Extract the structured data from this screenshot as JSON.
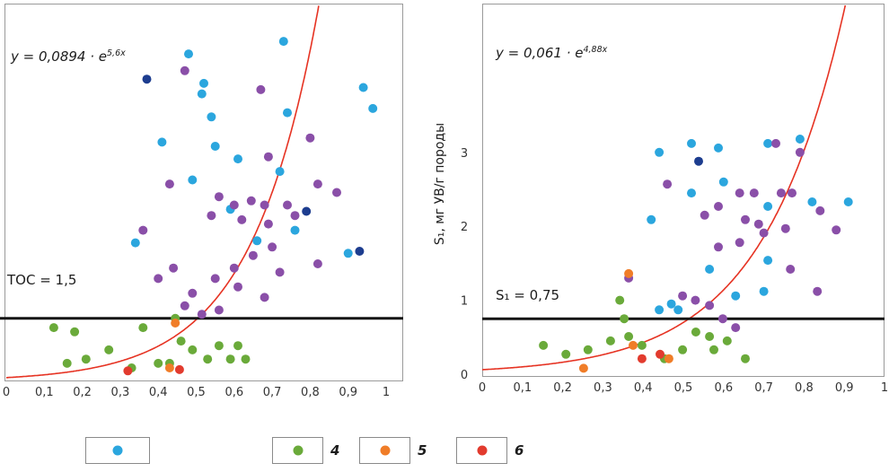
{
  "colors": {
    "curve": "#e63323",
    "threshold_line": "#141414",
    "plot_border": "#9a9a9a"
  },
  "legend": {
    "items": [
      {
        "name": "group-1",
        "label": "",
        "color": "#2ba6de"
      },
      {
        "name": "group-4",
        "label": "4",
        "color": "#6aaa3a"
      },
      {
        "name": "group-5",
        "label": "5",
        "color": "#f07d28"
      },
      {
        "name": "group-6",
        "label": "6",
        "color": "#e23b2e"
      }
    ]
  },
  "chart_data": [
    {
      "type": "scatter",
      "equation": {
        "base": "y = 0,0894 · e",
        "exponent": "5,6x"
      },
      "threshold": {
        "label": "TOC = 1,5",
        "value": 1.5
      },
      "fit_curve": {
        "type": "exponential",
        "a": 0.0894,
        "b": 5.6
      },
      "xlim": [
        0,
        1
      ],
      "ylim": [
        0,
        9
      ],
      "xlabel": "",
      "ylabel": "",
      "x_ticks": {
        "values": [
          0,
          0.1,
          0.2,
          0.3,
          0.4,
          0.5,
          0.6,
          0.7,
          0.8,
          0.9,
          1
        ],
        "labels": [
          "0",
          "0,1",
          "0,2",
          "0,3",
          "0,4",
          "0,5",
          "0,6",
          "0,7",
          "0,8",
          "0,9",
          "1"
        ]
      },
      "y_ticks": {
        "values": [],
        "labels": []
      },
      "series": [
        {
          "name": "group-1",
          "color": "#2ba6de",
          "points": [
            [
              0.48,
              7.8
            ],
            [
              0.73,
              8.1
            ],
            [
              0.515,
              6.85
            ],
            [
              0.54,
              6.3
            ],
            [
              0.74,
              6.4
            ],
            [
              0.94,
              7.0
            ],
            [
              0.965,
              6.5
            ],
            [
              0.41,
              5.7
            ],
            [
              0.55,
              5.6
            ],
            [
              0.61,
              5.3
            ],
            [
              0.49,
              4.8
            ],
            [
              0.34,
              3.3
            ],
            [
              0.66,
              3.35
            ],
            [
              0.76,
              3.6
            ],
            [
              0.9,
              3.05
            ],
            [
              0.59,
              4.1
            ],
            [
              0.72,
              5.0
            ],
            [
              0.52,
              7.1
            ]
          ]
        },
        {
          "name": "group-2",
          "color": "#1d3d8f",
          "points": [
            [
              0.37,
              7.2
            ],
            [
              0.79,
              4.05
            ],
            [
              0.93,
              3.1
            ]
          ]
        },
        {
          "name": "group-3",
          "color": "#8a4fa8",
          "points": [
            [
              0.47,
              7.4
            ],
            [
              0.67,
              6.95
            ],
            [
              0.8,
              5.8
            ],
            [
              0.69,
              5.35
            ],
            [
              0.43,
              4.7
            ],
            [
              0.56,
              4.4
            ],
            [
              0.6,
              4.2
            ],
            [
              0.645,
              4.3
            ],
            [
              0.68,
              4.2
            ],
            [
              0.74,
              4.2
            ],
            [
              0.82,
              4.7
            ],
            [
              0.87,
              4.5
            ],
            [
              0.54,
              3.95
            ],
            [
              0.62,
              3.85
            ],
            [
              0.69,
              3.75
            ],
            [
              0.76,
              3.95
            ],
            [
              0.82,
              2.8
            ],
            [
              0.72,
              2.6
            ],
            [
              0.68,
              2.0
            ],
            [
              0.61,
              2.25
            ],
            [
              0.55,
              2.45
            ],
            [
              0.49,
              2.1
            ],
            [
              0.47,
              1.8
            ],
            [
              0.515,
              1.6
            ],
            [
              0.56,
              1.7
            ],
            [
              0.6,
              2.7
            ],
            [
              0.36,
              3.6
            ],
            [
              0.4,
              2.45
            ],
            [
              0.44,
              2.7
            ],
            [
              0.65,
              3.0
            ],
            [
              0.7,
              3.2
            ]
          ]
        },
        {
          "name": "group-4",
          "color": "#6aaa3a",
          "points": [
            [
              0.125,
              1.28
            ],
            [
              0.18,
              1.18
            ],
            [
              0.21,
              0.53
            ],
            [
              0.16,
              0.43
            ],
            [
              0.27,
              0.75
            ],
            [
              0.33,
              0.32
            ],
            [
              0.36,
              1.28
            ],
            [
              0.4,
              0.43
            ],
            [
              0.43,
              0.43
            ],
            [
              0.46,
              0.96
            ],
            [
              0.49,
              0.75
            ],
            [
              0.53,
              0.53
            ],
            [
              0.56,
              0.85
            ],
            [
              0.59,
              0.53
            ],
            [
              0.61,
              0.85
            ],
            [
              0.63,
              0.53
            ],
            [
              0.445,
              1.5
            ]
          ]
        },
        {
          "name": "group-5",
          "color": "#f07d28",
          "points": [
            [
              0.445,
              1.39
            ],
            [
              0.43,
              0.32
            ]
          ]
        },
        {
          "name": "group-6",
          "color": "#e23b2e",
          "points": [
            [
              0.456,
              0.28
            ],
            [
              0.32,
              0.25
            ]
          ]
        }
      ]
    },
    {
      "type": "scatter",
      "equation": {
        "base": "y = 0,061 · e",
        "exponent": "4,88x"
      },
      "threshold": {
        "label": "S₁ = 0,75",
        "value": 0.75
      },
      "fit_curve": {
        "type": "exponential",
        "a": 0.061,
        "b": 4.88
      },
      "xlim": [
        0,
        1
      ],
      "ylim": [
        0,
        5
      ],
      "xlabel": "",
      "ylabel": "S₁, мг УВ/г породы",
      "x_ticks": {
        "values": [
          0,
          0.1,
          0.2,
          0.3,
          0.4,
          0.5,
          0.6,
          0.7,
          0.8,
          0.9,
          1
        ],
        "labels": [
          "0",
          "0,1",
          "0,2",
          "0,3",
          "0,4",
          "0,5",
          "0,6",
          "0,7",
          "0,8",
          "0,9",
          "1"
        ]
      },
      "y_ticks": {
        "values": [
          0,
          1,
          2,
          3
        ],
        "labels": [
          "0",
          "1",
          "2",
          "3"
        ]
      },
      "series": [
        {
          "name": "group-1",
          "color": "#2ba6de",
          "points": [
            [
              0.44,
              3.0
            ],
            [
              0.52,
              3.12
            ],
            [
              0.587,
              3.06
            ],
            [
              0.71,
              3.12
            ],
            [
              0.79,
              3.18
            ],
            [
              0.52,
              2.45
            ],
            [
              0.42,
              2.09
            ],
            [
              0.71,
              2.27
            ],
            [
              0.82,
              2.33
            ],
            [
              0.91,
              2.33
            ],
            [
              0.565,
              1.42
            ],
            [
              0.63,
              1.06
            ],
            [
              0.7,
              1.12
            ],
            [
              0.487,
              0.87
            ],
            [
              0.44,
              0.87
            ],
            [
              0.71,
              1.54
            ],
            [
              0.6,
              2.6
            ],
            [
              0.47,
              0.95
            ]
          ]
        },
        {
          "name": "group-2",
          "color": "#1d3d8f",
          "points": [
            [
              0.538,
              2.88
            ]
          ]
        },
        {
          "name": "group-3",
          "color": "#8a4fa8",
          "points": [
            [
              0.73,
              3.12
            ],
            [
              0.79,
              3.0
            ],
            [
              0.46,
              2.57
            ],
            [
              0.64,
              2.45
            ],
            [
              0.676,
              2.45
            ],
            [
              0.743,
              2.45
            ],
            [
              0.84,
              2.21
            ],
            [
              0.654,
              2.09
            ],
            [
              0.687,
              2.03
            ],
            [
              0.587,
              2.27
            ],
            [
              0.553,
              2.15
            ],
            [
              0.64,
              1.78
            ],
            [
              0.7,
              1.91
            ],
            [
              0.754,
              1.97
            ],
            [
              0.766,
              1.42
            ],
            [
              0.833,
              1.12
            ],
            [
              0.587,
              1.72
            ],
            [
              0.498,
              1.06
            ],
            [
              0.53,
              1.0
            ],
            [
              0.565,
              0.93
            ],
            [
              0.598,
              0.75
            ],
            [
              0.63,
              0.63
            ],
            [
              0.364,
              1.3
            ],
            [
              0.77,
              2.45
            ],
            [
              0.88,
              1.95
            ]
          ]
        },
        {
          "name": "group-4",
          "color": "#6aaa3a",
          "points": [
            [
              0.152,
              0.39
            ],
            [
              0.208,
              0.27
            ],
            [
              0.263,
              0.33
            ],
            [
              0.319,
              0.45
            ],
            [
              0.353,
              0.75
            ],
            [
              0.364,
              0.51
            ],
            [
              0.397,
              0.39
            ],
            [
              0.453,
              0.21
            ],
            [
              0.498,
              0.33
            ],
            [
              0.531,
              0.57
            ],
            [
              0.565,
              0.51
            ],
            [
              0.576,
              0.33
            ],
            [
              0.609,
              0.45
            ],
            [
              0.654,
              0.21
            ],
            [
              0.342,
              1.0
            ]
          ]
        },
        {
          "name": "group-5",
          "color": "#f07d28",
          "points": [
            [
              0.364,
              1.36
            ],
            [
              0.375,
              0.39
            ],
            [
              0.464,
              0.21
            ],
            [
              0.252,
              0.08
            ]
          ]
        },
        {
          "name": "group-6",
          "color": "#e23b2e",
          "points": [
            [
              0.397,
              0.21
            ],
            [
              0.442,
              0.27
            ]
          ]
        }
      ]
    }
  ]
}
